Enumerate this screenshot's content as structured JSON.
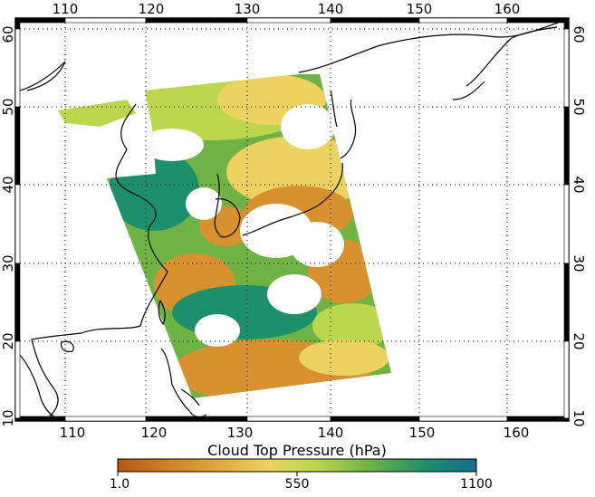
{
  "map": {
    "lon_labels": [
      "110",
      "120",
      "130",
      "140",
      "150",
      "160"
    ],
    "lat_labels": [
      "10",
      "20",
      "30",
      "40",
      "50",
      "60"
    ],
    "gridlines": true,
    "coastline_color": "#000000",
    "no_data_color": "#ffffff"
  },
  "colorbar": {
    "title": "Cloud Top Pressure (hPa)",
    "tick_labels": [
      "1.0",
      "550",
      "1100"
    ],
    "colors": [
      "#b45a0e",
      "#d9902f",
      "#ecd260",
      "#bcd74d",
      "#6fb344",
      "#1d8f6a",
      "#136d8e"
    ]
  }
}
